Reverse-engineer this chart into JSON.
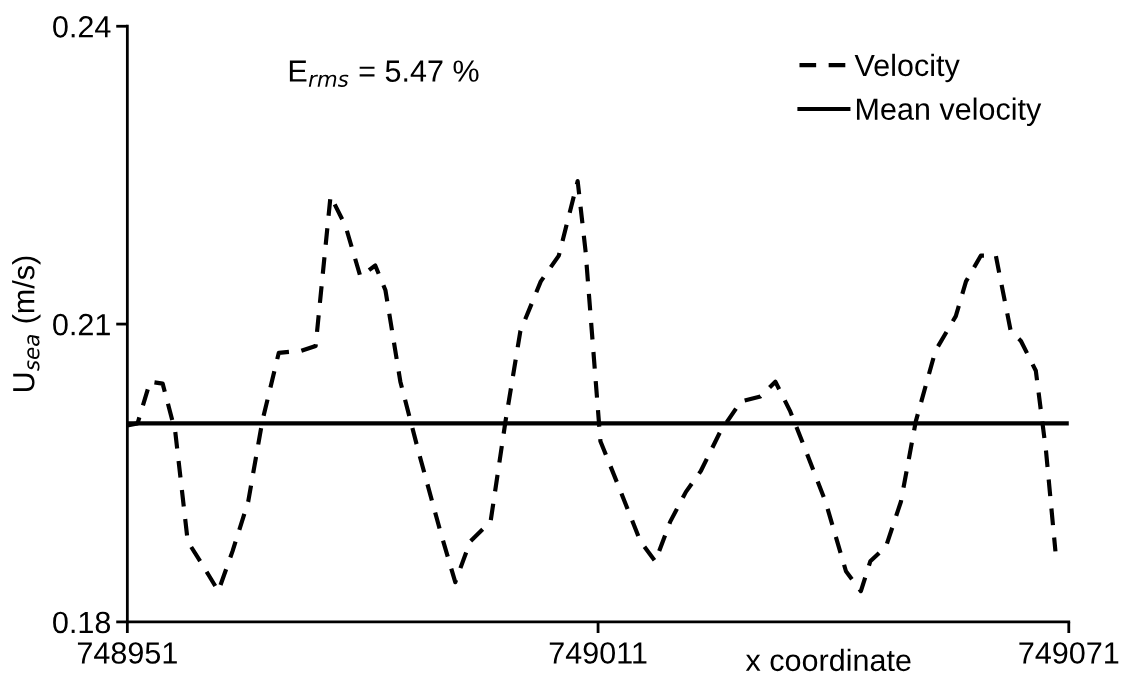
{
  "chart_data": {
    "type": "line",
    "xlabel": "x coordinate",
    "ylabel": "U$_{sea}$ (m/s)",
    "annotations": [
      "E$_{rms}$ = 5.47 %"
    ],
    "xlim": [
      748951,
      749071
    ],
    "xticks": [
      748951,
      749011,
      749071
    ],
    "ylim": [
      0.18,
      0.24
    ],
    "yticks": [
      0.18,
      0.21,
      0.24
    ],
    "grid": false,
    "legend": "top right",
    "marker": "none",
    "series": [
      {
        "name": "Velocity",
        "color": "#000000",
        "line_style": "dashed",
        "x": [
          748951,
          748952.3,
          748953.9,
          748955.5,
          748957.1,
          748958.7,
          748960.3,
          748962.6,
          748964.4,
          748966.4,
          748968.2,
          748970.3,
          748973.1,
          748975,
          748976.9,
          748978.8,
          748980.7,
          748982.6,
          748983.9,
          748985.8,
          748988.1,
          748990.9,
          748992.8,
          748994.7,
          748997.3,
          748999.2,
          749001.1,
          749003.7,
          749006,
          749008.4,
          749009.4,
          749011.3,
          749013.9,
          749016.4,
          749018.3,
          749020.2,
          749022.2,
          749024.1,
          749026.6,
          749029.2,
          749031.7,
          749033.6,
          749035.5,
          749037.5,
          749040,
          749042.6,
          749044.5,
          749045.7,
          749047.7,
          749049.6,
          749051.5,
          749054,
          749056.6,
          749057.9,
          749059.8,
          749061.7,
          749063.6,
          749064.9,
          749066.8,
          749068.1,
          749069.3
        ],
        "values": [
          0.1998,
          0.2,
          0.2042,
          0.204,
          0.1992,
          0.1881,
          0.1861,
          0.1831,
          0.1871,
          0.1921,
          0.2002,
          0.2071,
          0.2073,
          0.2078,
          0.2229,
          0.2199,
          0.2148,
          0.2159,
          0.2134,
          0.2042,
          0.1972,
          0.1891,
          0.184,
          0.1881,
          0.1901,
          0.2002,
          0.2093,
          0.2143,
          0.2169,
          0.2244,
          0.2174,
          0.1982,
          0.1931,
          0.1881,
          0.1861,
          0.1901,
          0.1931,
          0.1952,
          0.1992,
          0.2022,
          0.2027,
          0.2042,
          0.2012,
          0.1972,
          0.1921,
          0.1851,
          0.1831,
          0.1861,
          0.1876,
          0.1921,
          0.2002,
          0.2073,
          0.2108,
          0.2143,
          0.2169,
          0.2169,
          0.2093,
          0.2083,
          0.2053,
          0.1972,
          0.1871
        ]
      },
      {
        "name": "Mean velocity",
        "color": "#000000",
        "line_style": "solid",
        "x": [
          748951,
          749071
        ],
        "values": [
          0.2,
          0.2
        ]
      }
    ]
  }
}
